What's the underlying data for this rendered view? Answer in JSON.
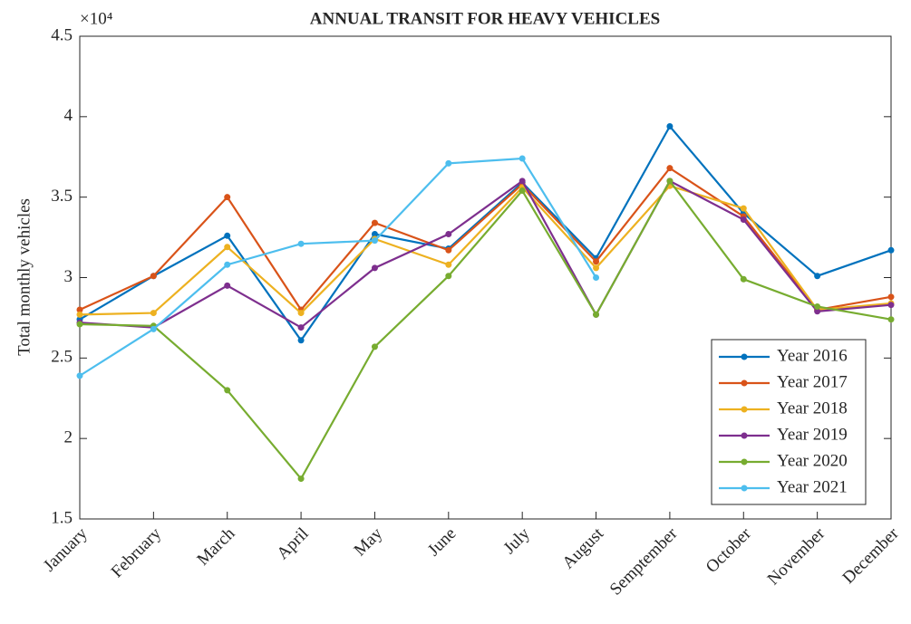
{
  "chart_data": {
    "type": "line",
    "title": "ANNUAL TRANSIT FOR HEAVY VEHICLES",
    "y_label": "Total monthly vehicles",
    "y_multiplier": "×10⁴",
    "categories": [
      "January",
      "February",
      "March",
      "April",
      "May",
      "June",
      "July",
      "August",
      "Semptember",
      "October",
      "November",
      "December"
    ],
    "series": [
      {
        "name": "Year 2016",
        "color": "#0072BD",
        "values": [
          27400,
          30100,
          32600,
          26100,
          32700,
          31800,
          35900,
          31200,
          39400,
          34000,
          30100,
          31700
        ]
      },
      {
        "name": "Year 2017",
        "color": "#D95319",
        "values": [
          28000,
          30100,
          35000,
          28000,
          33400,
          31700,
          35800,
          31000,
          36800,
          33800,
          28000,
          28800
        ]
      },
      {
        "name": "Year 2018",
        "color": "#EDB120",
        "values": [
          27700,
          27800,
          31900,
          27800,
          32400,
          30800,
          35600,
          30600,
          35700,
          34300,
          28000,
          28400
        ]
      },
      {
        "name": "Year 2019",
        "color": "#7E2F8E",
        "values": [
          27200,
          26900,
          29500,
          26900,
          30600,
          32700,
          36000,
          27700,
          36000,
          33600,
          27900,
          28300
        ]
      },
      {
        "name": "Year 2020",
        "color": "#77AC30",
        "values": [
          27100,
          27000,
          23000,
          17500,
          25700,
          30100,
          35400,
          27700,
          36000,
          29900,
          28200,
          27400
        ]
      },
      {
        "name": "Year 2021",
        "color": "#4DBEEE",
        "values": [
          23900,
          26800,
          30800,
          32100,
          32300,
          37100,
          37400,
          30000,
          null,
          null,
          null,
          null
        ]
      }
    ],
    "ylim": [
      15000,
      45000
    ],
    "yticks": [
      {
        "value": 15000,
        "label": "1.5"
      },
      {
        "value": 20000,
        "label": "2"
      },
      {
        "value": 25000,
        "label": "2.5"
      },
      {
        "value": 30000,
        "label": "3"
      },
      {
        "value": 35000,
        "label": "3.5"
      },
      {
        "value": 40000,
        "label": "4"
      },
      {
        "value": 45000,
        "label": "4.5"
      }
    ],
    "grid": false,
    "legend": "lower right"
  }
}
